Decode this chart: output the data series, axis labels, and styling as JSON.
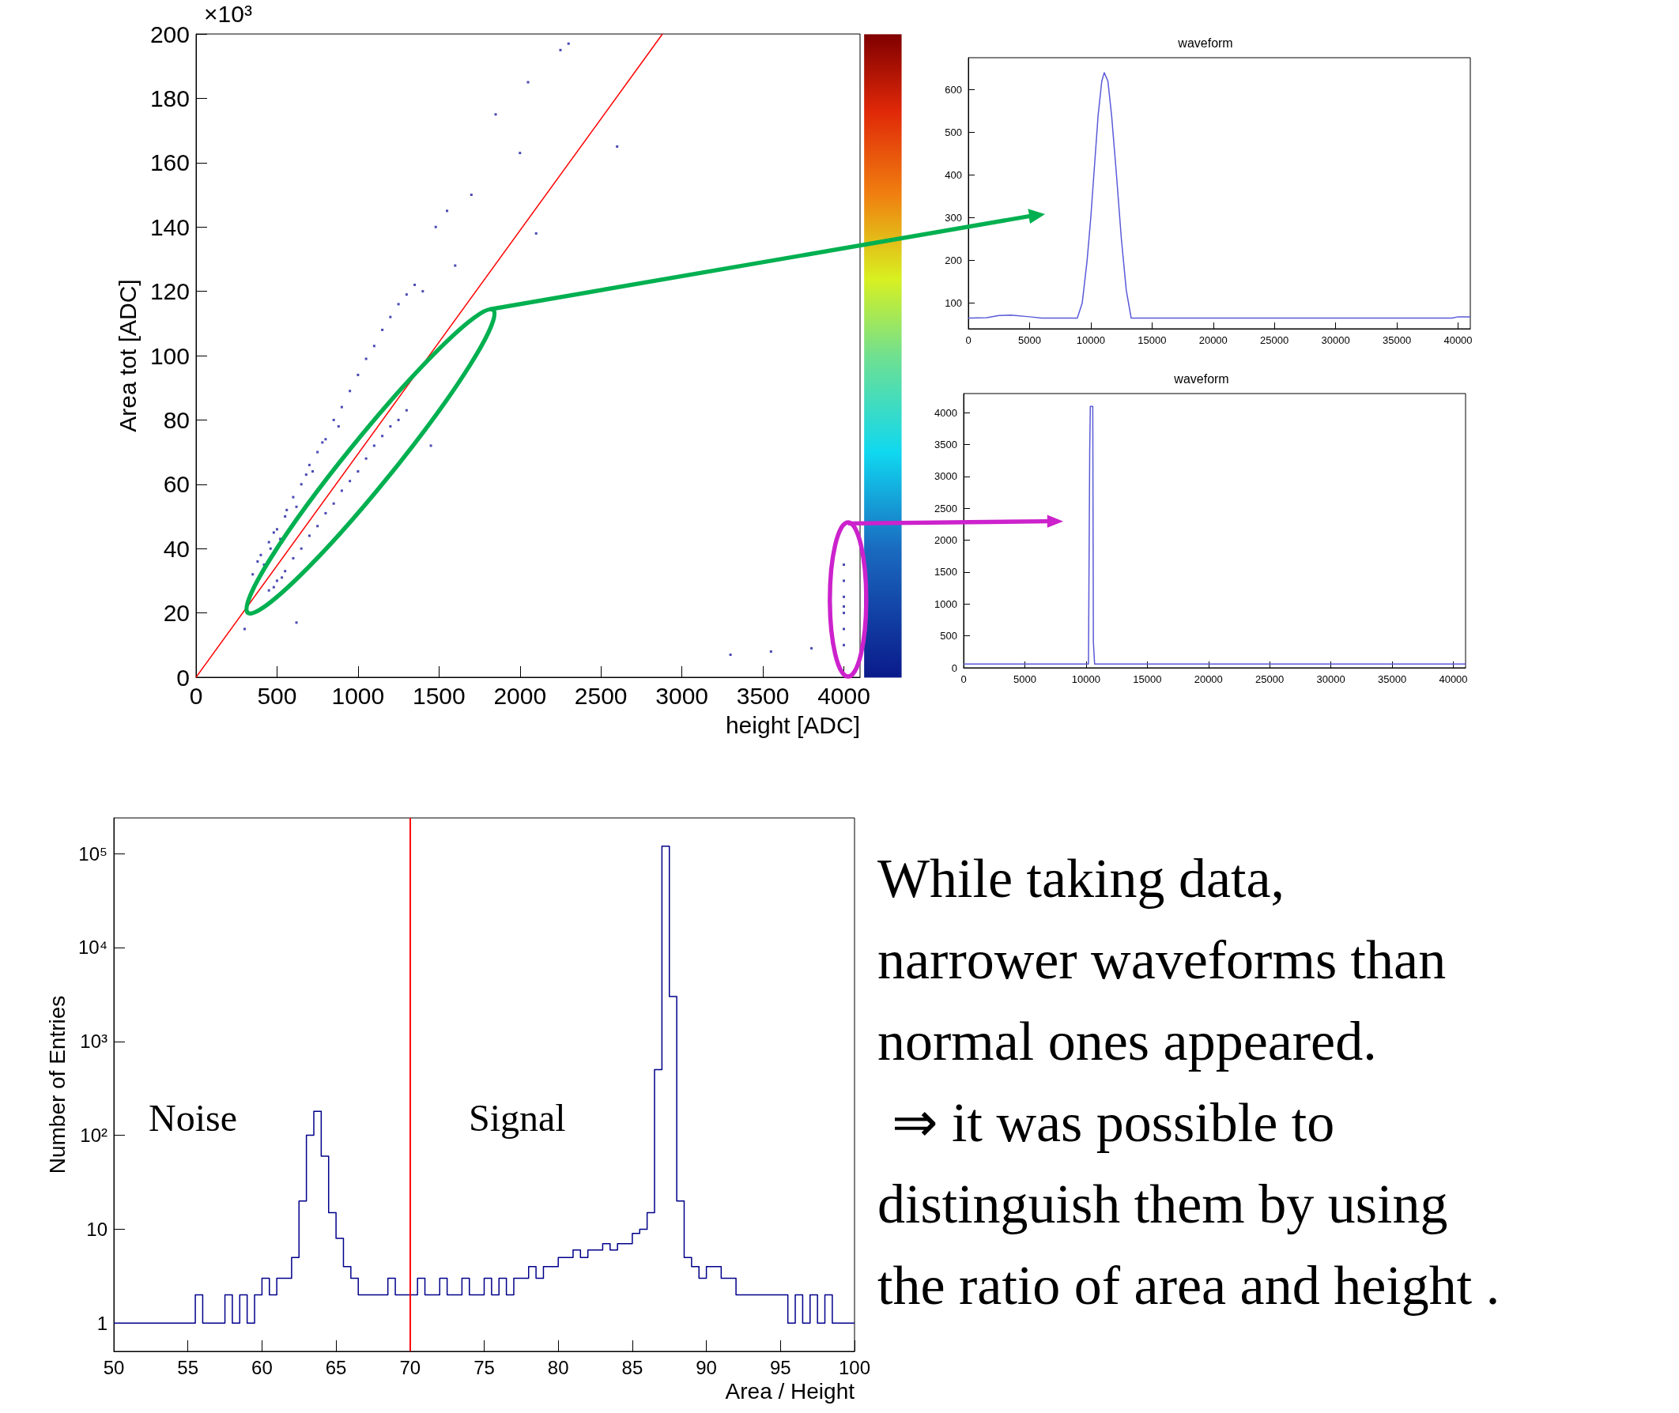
{
  "chart_data": [
    {
      "type": "scatter",
      "xlabel": "height [ADC]",
      "ylabel": "Area tot [ADC]",
      "annotations": [
        "×10³"
      ],
      "xlim": [
        0,
        4100
      ],
      "ylim": [
        0,
        200
      ],
      "xticks": [
        0,
        500,
        1000,
        1500,
        2000,
        2500,
        3000,
        3500,
        4000
      ],
      "yticks": [
        0,
        20,
        40,
        60,
        80,
        100,
        120,
        140,
        160,
        180,
        200
      ],
      "series": [
        {
          "type": "scatter",
          "color": "#1c1ca0",
          "x": [
            350,
            380,
            400,
            420,
            450,
            460,
            480,
            500,
            520,
            550,
            560,
            600,
            620,
            650,
            680,
            700,
            720,
            750,
            780,
            800,
            850,
            880,
            900,
            950,
            1000,
            1050,
            1100,
            1150,
            1200,
            1250,
            1300,
            1350,
            450,
            480,
            500,
            530,
            550,
            600,
            650,
            700,
            750,
            800,
            850,
            900,
            950,
            1000,
            1050,
            1100,
            1150,
            1200,
            1250,
            1300,
            1400,
            1480,
            1550,
            1600,
            1700,
            1850,
            2000,
            2050,
            2100,
            2250,
            2300,
            2600,
            1450,
            300,
            620,
            3300,
            3550,
            3800,
            4000,
            4000,
            4000,
            4000,
            4000,
            4000,
            4000
          ],
          "values": [
            32,
            36,
            38,
            35,
            42,
            40,
            45,
            46,
            43,
            50,
            52,
            56,
            53,
            60,
            63,
            66,
            64,
            70,
            73,
            74,
            80,
            78,
            84,
            89,
            94,
            99,
            103,
            108,
            112,
            116,
            119,
            122,
            27,
            28,
            30,
            31,
            33,
            37,
            40,
            44,
            47,
            51,
            54,
            58,
            61,
            64,
            68,
            72,
            75,
            78,
            80,
            83,
            120,
            140,
            145,
            128,
            150,
            175,
            163,
            185,
            138,
            195,
            197,
            165,
            72,
            15,
            17,
            7,
            8,
            9,
            10,
            15,
            20,
            22,
            25,
            30,
            35
          ]
        },
        {
          "type": "line",
          "color": "#ff0000",
          "x": [
            0,
            2880
          ],
          "values": [
            0,
            200
          ]
        }
      ]
    },
    {
      "type": "line",
      "title": "waveform",
      "xlim": [
        0,
        41000
      ],
      "ylim": [
        40,
        675
      ],
      "xticks": [
        0,
        5000,
        10000,
        15000,
        20000,
        25000,
        30000,
        35000,
        40000
      ],
      "yticks": [
        100,
        200,
        300,
        400,
        500,
        600
      ],
      "marker": "none",
      "series": [
        {
          "color": "#5a5ad8",
          "x": [
            0,
            1500,
            2500,
            3500,
            5000,
            6000,
            8900,
            9300,
            9700,
            10000,
            10300,
            10600,
            10900,
            11100,
            11400,
            11700,
            12100,
            12500,
            12900,
            13300,
            20000,
            30000,
            39500,
            40000,
            41000
          ],
          "values": [
            65,
            66,
            71,
            72,
            68,
            65,
            65,
            100,
            200,
            300,
            420,
            540,
            620,
            640,
            620,
            540,
            400,
            250,
            130,
            65,
            65,
            65,
            65,
            68,
            68
          ]
        }
      ]
    },
    {
      "type": "line",
      "title": "waveform",
      "xlim": [
        0,
        41000
      ],
      "ylim": [
        0,
        4300
      ],
      "xticks": [
        0,
        5000,
        10000,
        15000,
        20000,
        25000,
        30000,
        35000,
        40000
      ],
      "yticks": [
        0,
        500,
        1000,
        1500,
        2000,
        2500,
        3000,
        3500,
        4000
      ],
      "marker": "none",
      "series": [
        {
          "color": "#5a5ad8",
          "x": [
            0,
            10200,
            10300,
            10350,
            10550,
            10600,
            10700,
            41000
          ],
          "values": [
            60,
            60,
            3400,
            4100,
            4100,
            400,
            60,
            60
          ]
        }
      ]
    },
    {
      "type": "histogram",
      "xlabel": "Area / Height",
      "ylabel": "Number of Entries",
      "log": "y",
      "xlim": [
        50,
        100
      ],
      "ylim": [
        0.5,
        240000
      ],
      "xticks": [
        50,
        55,
        60,
        65,
        70,
        75,
        80,
        85,
        90,
        95,
        100
      ],
      "yticks": [
        1,
        10,
        {
          "value": 100,
          "label": "10²"
        },
        {
          "value": 1000,
          "label": "10³"
        },
        {
          "value": 10000,
          "label": "10⁴"
        },
        {
          "value": 100000,
          "label": "10⁵"
        }
      ],
      "color": "#00008b",
      "ref_lines": [
        {
          "axis": "x",
          "value": 70,
          "label": null,
          "color": "#ff0000"
        }
      ],
      "annotations": [
        "Noise",
        "Signal"
      ],
      "bins": [
        50,
        50.5,
        51,
        51.5,
        52,
        52.5,
        53,
        53.5,
        54,
        54.5,
        55,
        55.5,
        56,
        56.5,
        57,
        57.5,
        58,
        58.5,
        59,
        59.5,
        60,
        60.5,
        61,
        61.5,
        62,
        62.5,
        63,
        63.5,
        64,
        64.5,
        65,
        65.5,
        66,
        66.5,
        67,
        67.5,
        68,
        68.5,
        69,
        69.5,
        70,
        70.5,
        71,
        71.5,
        72,
        72.5,
        73,
        73.5,
        74,
        74.5,
        75,
        75.5,
        76,
        76.5,
        77,
        77.5,
        78,
        78.5,
        79,
        79.5,
        80,
        80.5,
        81,
        81.5,
        82,
        82.5,
        83,
        83.5,
        84,
        84.5,
        85,
        85.5,
        86,
        86.5,
        87,
        87.5,
        88,
        88.5,
        89,
        89.5,
        90,
        90.5,
        91,
        91.5,
        92,
        92.5,
        93,
        93.5,
        94,
        94.5,
        95,
        95.5,
        96,
        96.5,
        97,
        97.5,
        98,
        98.5,
        99,
        99.5,
        100
      ],
      "values": [
        1,
        1,
        1,
        1,
        1,
        1,
        1,
        1,
        1,
        1,
        1,
        2,
        1,
        1,
        1,
        2,
        1,
        2,
        1,
        2,
        3,
        2,
        3,
        3,
        5,
        20,
        100,
        180,
        60,
        15,
        8,
        4,
        3,
        2,
        2,
        2,
        2,
        3,
        2,
        2,
        2,
        3,
        2,
        2,
        3,
        2,
        2,
        3,
        2,
        2,
        3,
        2,
        3,
        2,
        3,
        3,
        4,
        3,
        4,
        4,
        5,
        5,
        6,
        5,
        6,
        6,
        7,
        6,
        7,
        7,
        9,
        10,
        15,
        500,
        120000,
        3000,
        20,
        5,
        4,
        3,
        4,
        4,
        3,
        3,
        2,
        2,
        2,
        2,
        2,
        2,
        2,
        1,
        2,
        1,
        2,
        1,
        2,
        1,
        1,
        1
      ]
    },
    {
      "type": "other",
      "annotations": [
        "While taking data,",
        "narrower waveforms than",
        "normal ones appeared.",
        " ⇒ it was possible to",
        "distinguish them by using",
        "the ratio of area and height ."
      ]
    }
  ]
}
